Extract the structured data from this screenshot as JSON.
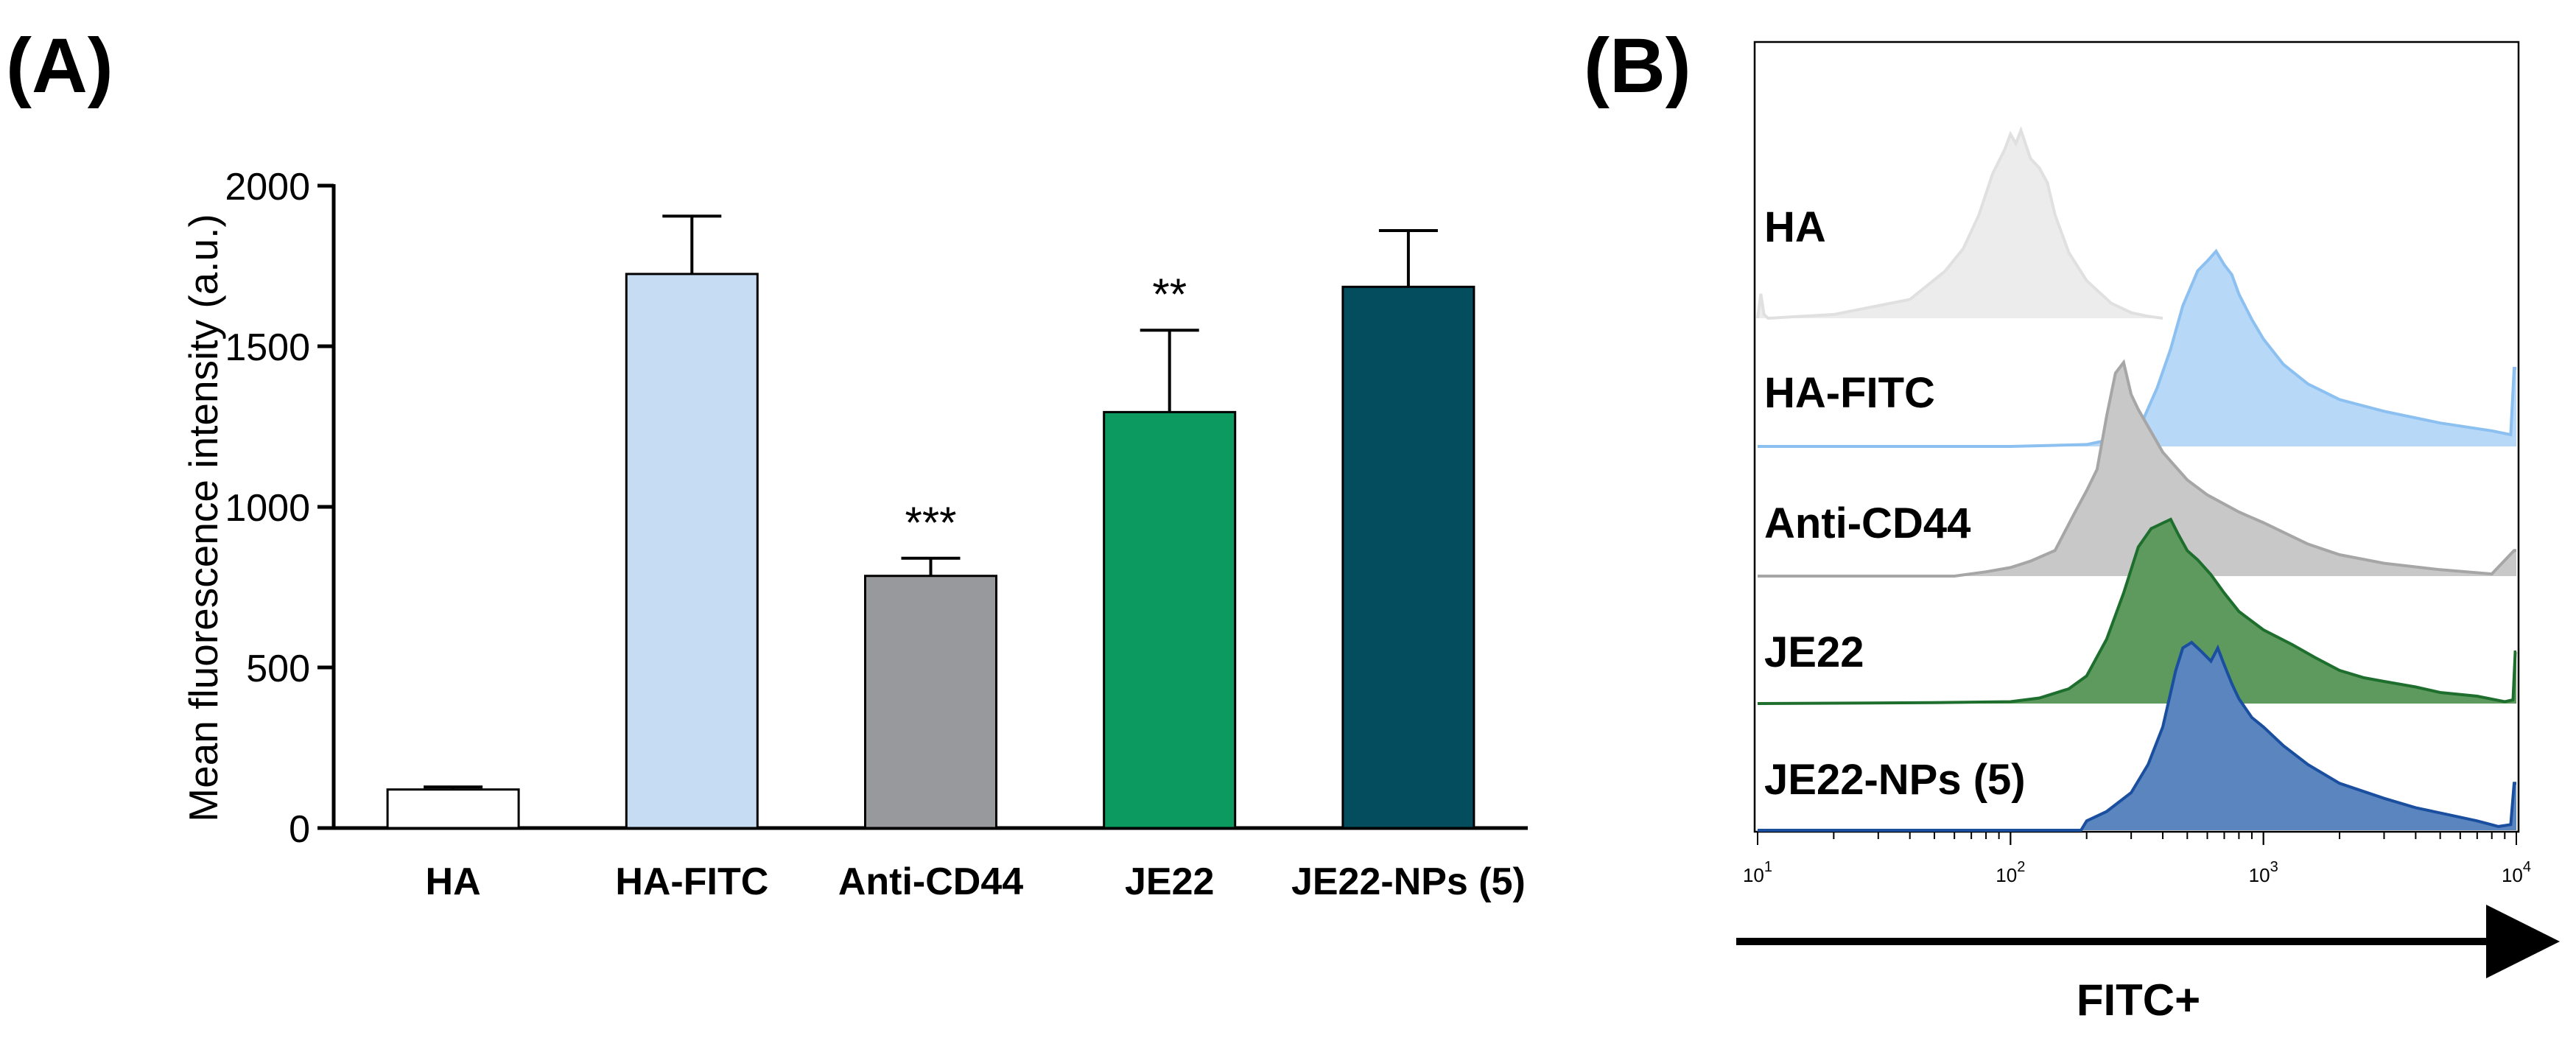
{
  "panel_a_label": "(A)",
  "panel_b_label": "(B)",
  "chart_data": [
    {
      "type": "bar",
      "panel": "(A)",
      "ylabel": "Mean fluorescence intensity  (a.u.)",
      "xlabel": "",
      "ylim": [
        0,
        2000
      ],
      "yticks": [
        0,
        500,
        1000,
        1500,
        2000
      ],
      "categories": [
        "HA",
        "HA-FITC",
        "Anti-CD44",
        "JE22",
        "JE22-NPs (5)"
      ],
      "values": [
        120,
        1725,
        785,
        1295,
        1685
      ],
      "errors": [
        8,
        180,
        55,
        255,
        175
      ],
      "significance": [
        "",
        "",
        "***",
        "**",
        ""
      ],
      "colors": [
        "#ffffff",
        "#c5dcf3",
        "#98999c",
        "#0d9a61",
        "#044d5e"
      ]
    },
    {
      "type": "area",
      "panel": "(B)",
      "xlabel": "FITC+",
      "xscale": "log",
      "xlim": [
        10,
        10000
      ],
      "xticks": [
        {
          "value": 10,
          "base": "10",
          "exp": "1"
        },
        {
          "value": 100,
          "base": "10",
          "exp": "2"
        },
        {
          "value": 1000,
          "base": "10",
          "exp": "3"
        },
        {
          "value": 10000,
          "base": "10",
          "exp": "4"
        }
      ],
      "series": [
        {
          "name": "HA",
          "fill": "#ececec",
          "stroke": "#e0e0e0",
          "x": [
            10,
            10.3,
            10.6,
            11,
            20,
            40,
            55,
            65,
            75,
            85,
            95,
            100,
            105,
            110,
            120,
            130,
            140,
            150,
            170,
            200,
            250,
            300,
            350,
            400
          ],
          "y": [
            0,
            0.13,
            0.02,
            0,
            0.02,
            0.1,
            0.25,
            0.37,
            0.55,
            0.77,
            0.9,
            0.98,
            0.93,
            1.0,
            0.85,
            0.8,
            0.72,
            0.55,
            0.35,
            0.2,
            0.08,
            0.03,
            0.01,
            0
          ]
        },
        {
          "name": "HA-FITC",
          "fill": "#b8d8f8",
          "stroke": "#8cc0f0",
          "x": [
            10,
            100,
            200,
            280,
            330,
            380,
            430,
            480,
            550,
            600,
            650,
            700,
            750,
            800,
            900,
            1000,
            1200,
            1500,
            2000,
            3000,
            5000,
            8000,
            9500,
            9800,
            10000
          ],
          "y": [
            0,
            0,
            0.01,
            0.05,
            0.12,
            0.3,
            0.5,
            0.72,
            0.9,
            0.95,
            1.0,
            0.93,
            0.88,
            0.78,
            0.65,
            0.55,
            0.42,
            0.32,
            0.24,
            0.18,
            0.12,
            0.08,
            0.06,
            0.4,
            0.4
          ]
        },
        {
          "name": "Anti-CD44",
          "fill": "#c8c8c8",
          "stroke": "#a6a6a6",
          "x": [
            10,
            60,
            80,
            100,
            120,
            150,
            180,
            200,
            220,
            240,
            260,
            280,
            300,
            320,
            350,
            400,
            500,
            600,
            800,
            1000,
            1500,
            2000,
            3000,
            5000,
            8000,
            9800,
            10000
          ],
          "y": [
            0,
            0,
            0.02,
            0.04,
            0.07,
            0.12,
            0.3,
            0.4,
            0.5,
            0.75,
            0.95,
            1.0,
            0.85,
            0.78,
            0.7,
            0.58,
            0.45,
            0.38,
            0.3,
            0.25,
            0.15,
            0.1,
            0.06,
            0.03,
            0.01,
            0.12,
            0.12
          ]
        },
        {
          "name": "JE22",
          "fill": "#5e9a5e",
          "stroke": "#1e6e2e",
          "x": [
            10,
            50,
            100,
            130,
            170,
            200,
            240,
            280,
            320,
            360,
            400,
            430,
            460,
            500,
            550,
            620,
            700,
            800,
            1000,
            1300,
            1600,
            2000,
            2500,
            3000,
            4000,
            5000,
            7000,
            9000,
            9700,
            9900,
            10000
          ],
          "y": [
            0,
            0.005,
            0.01,
            0.03,
            0.08,
            0.15,
            0.35,
            0.6,
            0.85,
            0.95,
            0.98,
            1.0,
            0.92,
            0.83,
            0.78,
            0.7,
            0.6,
            0.5,
            0.4,
            0.32,
            0.25,
            0.18,
            0.14,
            0.12,
            0.09,
            0.06,
            0.04,
            0.01,
            0.02,
            0.28,
            0.28
          ]
        },
        {
          "name": "JE22-NPs (5)",
          "fill": "#5b85bf",
          "stroke": "#1a4fa0",
          "x": [
            10,
            190,
            200,
            240,
            300,
            350,
            400,
            450,
            480,
            520,
            570,
            620,
            660,
            700,
            750,
            800,
            900,
            1000,
            1200,
            1500,
            2000,
            3000,
            4000,
            5500,
            7000,
            8500,
            9500,
            9800,
            10000
          ],
          "y": [
            0,
            0,
            0.05,
            0.1,
            0.2,
            0.35,
            0.55,
            0.85,
            0.97,
            1.0,
            0.95,
            0.9,
            0.97,
            0.88,
            0.78,
            0.7,
            0.6,
            0.55,
            0.45,
            0.35,
            0.25,
            0.17,
            0.12,
            0.08,
            0.05,
            0.02,
            0.03,
            0.25,
            0.25
          ]
        }
      ]
    }
  ]
}
